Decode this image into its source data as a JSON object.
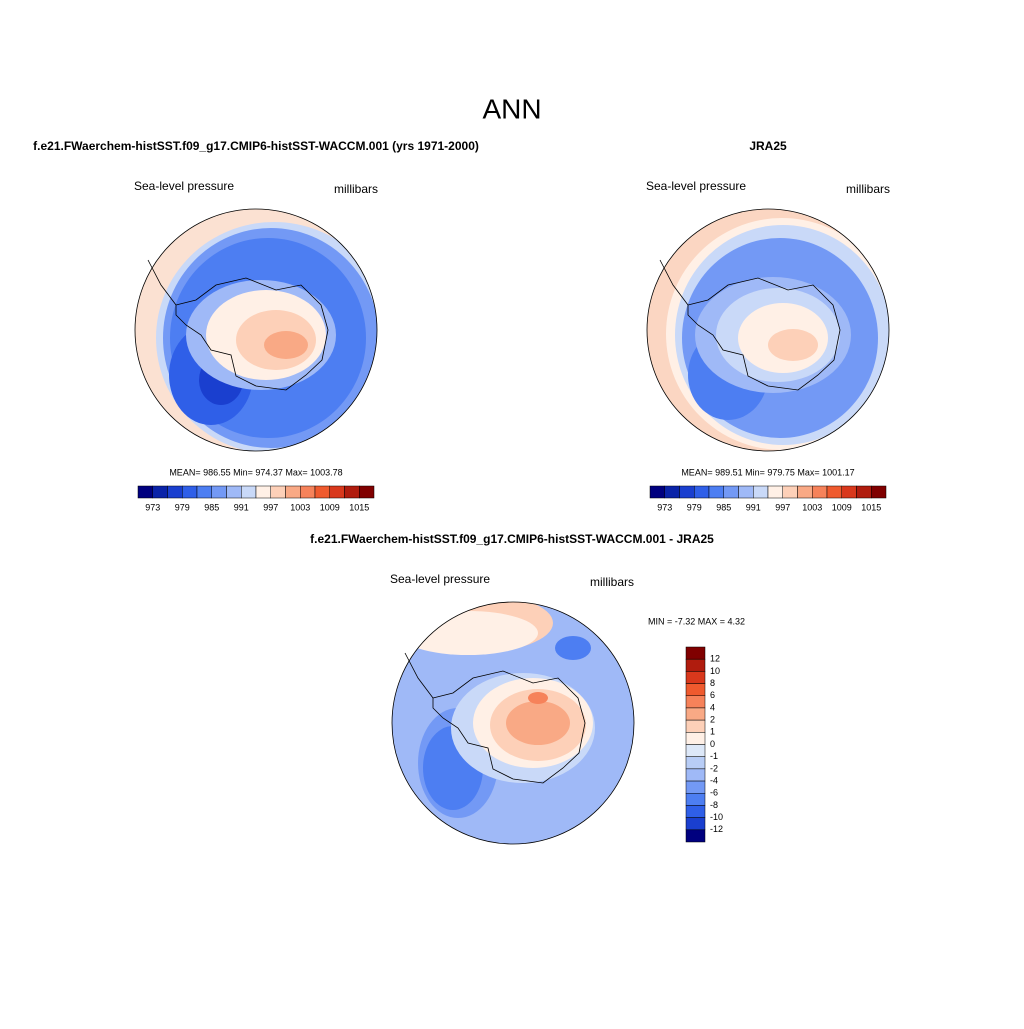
{
  "title": "ANN",
  "panels": [
    {
      "title": "f.e21.FWaerchem-histSST.f09_g17.CMIP6-histSST-WACCM.001 (yrs 1971-2000)",
      "left_label": "Sea-level pressure",
      "right_label": "millibars",
      "stats": "MEAN= 986.55  Min= 974.37  Max= 1003.78",
      "colorbar": {
        "labels": [
          "973",
          "979",
          "985",
          "991",
          "997",
          "1003",
          "1009",
          "1015"
        ],
        "colors": [
          "#00007f",
          "#0a23a8",
          "#1a3fcf",
          "#2f5fe8",
          "#4d7ef2",
          "#7399f5",
          "#9fb9f7",
          "#c9d9f8",
          "#fff0e6",
          "#fdd0b8",
          "#f9a985",
          "#f6825a",
          "#ef5a2e",
          "#d9381c",
          "#b01c0e",
          "#800000"
        ]
      }
    },
    {
      "title": "JRA25",
      "left_label": "Sea-level pressure",
      "right_label": "millibars",
      "stats": "MEAN= 989.51  Min= 979.75  Max= 1001.17",
      "colorbar": {
        "labels": [
          "973",
          "979",
          "985",
          "991",
          "997",
          "1003",
          "1009",
          "1015"
        ],
        "colors": [
          "#00007f",
          "#0a23a8",
          "#1a3fcf",
          "#2f5fe8",
          "#4d7ef2",
          "#7399f5",
          "#9fb9f7",
          "#c9d9f8",
          "#fff0e6",
          "#fdd0b8",
          "#f9a985",
          "#f6825a",
          "#ef5a2e",
          "#d9381c",
          "#b01c0e",
          "#800000"
        ]
      }
    },
    {
      "title": "f.e21.FWaerchem-histSST.f09_g17.CMIP6-histSST-WACCM.001 - JRA25",
      "left_label": "Sea-level pressure",
      "right_label": "millibars",
      "stats": "MIN =  -7.32 MAX =   4.32",
      "colorbar": {
        "labels": [
          "12",
          "10",
          "8",
          "6",
          "4",
          "2",
          "1",
          "0",
          "-1",
          "-2",
          "-4",
          "-6",
          "-8",
          "-10",
          "-12"
        ],
        "colors": [
          "#800000",
          "#b01c0e",
          "#d9381c",
          "#ef5a2e",
          "#f6825a",
          "#f9a985",
          "#fdd0b8",
          "#fff0e6",
          "#dde8f8",
          "#b8cdf6",
          "#9fb9f7",
          "#7399f5",
          "#4d7ef2",
          "#2f5fe8",
          "#1a3fcf",
          "#00007f"
        ]
      }
    }
  ]
}
